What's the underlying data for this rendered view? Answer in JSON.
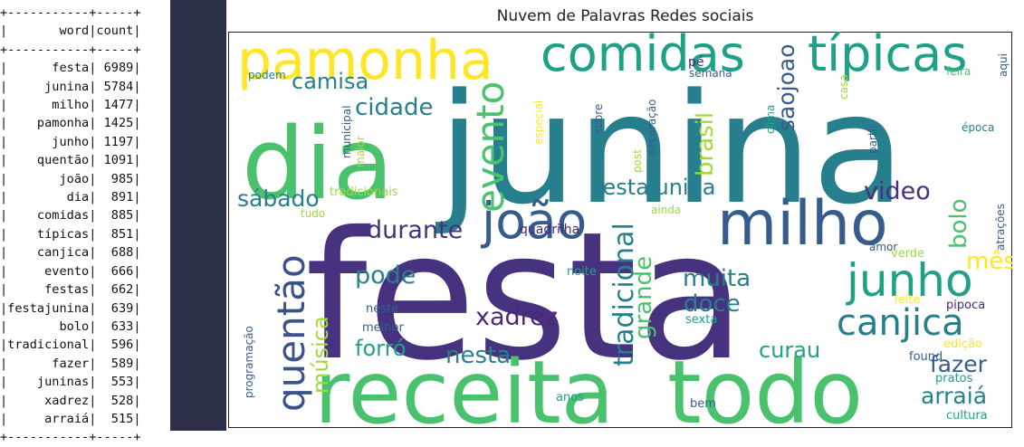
{
  "table": {
    "border": "+-----------+-----+",
    "header_word": "word",
    "header_count": "count",
    "rows": [
      {
        "word": "festa",
        "count": "6989"
      },
      {
        "word": "junina",
        "count": "5784"
      },
      {
        "word": "milho",
        "count": "1477"
      },
      {
        "word": "pamonha",
        "count": "1425"
      },
      {
        "word": "junho",
        "count": "1197"
      },
      {
        "word": "quentão",
        "count": "1091"
      },
      {
        "word": "joão",
        "count": "985"
      },
      {
        "word": "dia",
        "count": "891"
      },
      {
        "word": "comidas",
        "count": "885"
      },
      {
        "word": "típicas",
        "count": "851"
      },
      {
        "word": "canjica",
        "count": "688"
      },
      {
        "word": "evento",
        "count": "666"
      },
      {
        "word": "festas",
        "count": "662"
      },
      {
        "word": "festajunina",
        "count": "639"
      },
      {
        "word": "bolo",
        "count": "633"
      },
      {
        "word": "tradicional",
        "count": "596"
      },
      {
        "word": "fazer",
        "count": "589"
      },
      {
        "word": "juninas",
        "count": "553"
      },
      {
        "word": "xadrez",
        "count": "528"
      },
      {
        "word": "arraiá",
        "count": "515"
      }
    ]
  },
  "cloud": {
    "title": "Nuvem de Palavras Redes sociais",
    "colors": {
      "dark_purple": "#46327e",
      "purple": "#482878",
      "blue": "#365c8d",
      "teal": "#277f8e",
      "teal_green": "#1fa187",
      "green": "#4ac16d",
      "light_green": "#a0da39",
      "yellow": "#fde725",
      "light_blue": "#3b528b"
    },
    "words": [
      {
        "text": "junina",
        "color": "teal"
      },
      {
        "text": "festa",
        "color": "dark_purple"
      },
      {
        "text": "dia",
        "color": "green"
      },
      {
        "text": "receita",
        "color": "green"
      },
      {
        "text": "todo",
        "color": "green"
      },
      {
        "text": "pamonha",
        "color": "yellow"
      },
      {
        "text": "comidas",
        "color": "teal_green"
      },
      {
        "text": "típicas",
        "color": "teal_green"
      },
      {
        "text": "milho",
        "color": "blue"
      },
      {
        "text": "joão",
        "color": "blue"
      },
      {
        "text": "junho",
        "color": "teal_green"
      },
      {
        "text": "quentão",
        "color": "light_blue"
      },
      {
        "text": "evento",
        "color": "green"
      },
      {
        "text": "canjica",
        "color": "teal"
      },
      {
        "text": "cidade",
        "color": "teal"
      },
      {
        "text": "camisa",
        "color": "teal"
      },
      {
        "text": "sábado",
        "color": "teal"
      },
      {
        "text": "durante",
        "color": "dark_purple"
      },
      {
        "text": "festajunina",
        "color": "teal"
      },
      {
        "text": "video",
        "color": "dark_purple"
      },
      {
        "text": "brasil",
        "color": "light_green"
      },
      {
        "text": "saojoao",
        "color": "blue"
      },
      {
        "text": "bolo",
        "color": "green"
      },
      {
        "text": "mês",
        "color": "yellow"
      },
      {
        "text": "tradicional",
        "color": "teal"
      },
      {
        "text": "grande",
        "color": "green"
      },
      {
        "text": "pode",
        "color": "teal"
      },
      {
        "text": "muita",
        "color": "teal"
      },
      {
        "text": "doce",
        "color": "teal"
      },
      {
        "text": "xadrez",
        "color": "purple"
      },
      {
        "text": "música",
        "color": "light_green"
      },
      {
        "text": "forró",
        "color": "teal_green"
      },
      {
        "text": "nesta",
        "color": "teal"
      },
      {
        "text": "curau",
        "color": "teal_green"
      },
      {
        "text": "fazer",
        "color": "blue"
      },
      {
        "text": "arraiá",
        "color": "teal"
      },
      {
        "text": "pé",
        "color": "purple"
      },
      {
        "text": "podem",
        "color": "teal"
      },
      {
        "text": "semana",
        "color": "blue"
      },
      {
        "text": "feira",
        "color": "green"
      },
      {
        "text": "aqui",
        "color": "blue"
      },
      {
        "text": "época",
        "color": "teal"
      },
      {
        "text": "especial",
        "color": "yellow"
      },
      {
        "text": "sobre",
        "color": "blue"
      },
      {
        "text": "decoração",
        "color": "blue"
      },
      {
        "text": "clima",
        "color": "teal_green"
      },
      {
        "text": "casa",
        "color": "light_green"
      },
      {
        "text": "partir",
        "color": "blue"
      },
      {
        "text": "municipal",
        "color": "blue"
      },
      {
        "text": "maior",
        "color": "light_green"
      },
      {
        "text": "post",
        "color": "light_green"
      },
      {
        "text": "tradicionais",
        "color": "light_green"
      },
      {
        "text": "tudo",
        "color": "light_green"
      },
      {
        "text": "ainda",
        "color": "light_green"
      },
      {
        "text": "quadrilha",
        "color": "purple"
      },
      {
        "text": "amor",
        "color": "blue"
      },
      {
        "text": "verde",
        "color": "light_green"
      },
      {
        "text": "atrações",
        "color": "blue"
      },
      {
        "text": "noite",
        "color": "teal_green"
      },
      {
        "text": "leite",
        "color": "yellow"
      },
      {
        "text": "pipoca",
        "color": "purple"
      },
      {
        "text": "programação",
        "color": "blue"
      },
      {
        "text": "neste",
        "color": "blue"
      },
      {
        "text": "melhor",
        "color": "blue"
      },
      {
        "text": "sexta",
        "color": "teal_green"
      },
      {
        "text": "edição",
        "color": "yellow"
      },
      {
        "text": "found",
        "color": "blue"
      },
      {
        "text": "pratos",
        "color": "teal_green"
      },
      {
        "text": "anos",
        "color": "teal_green"
      },
      {
        "text": "bem",
        "color": "blue"
      },
      {
        "text": "cultura",
        "color": "teal_green"
      }
    ]
  }
}
